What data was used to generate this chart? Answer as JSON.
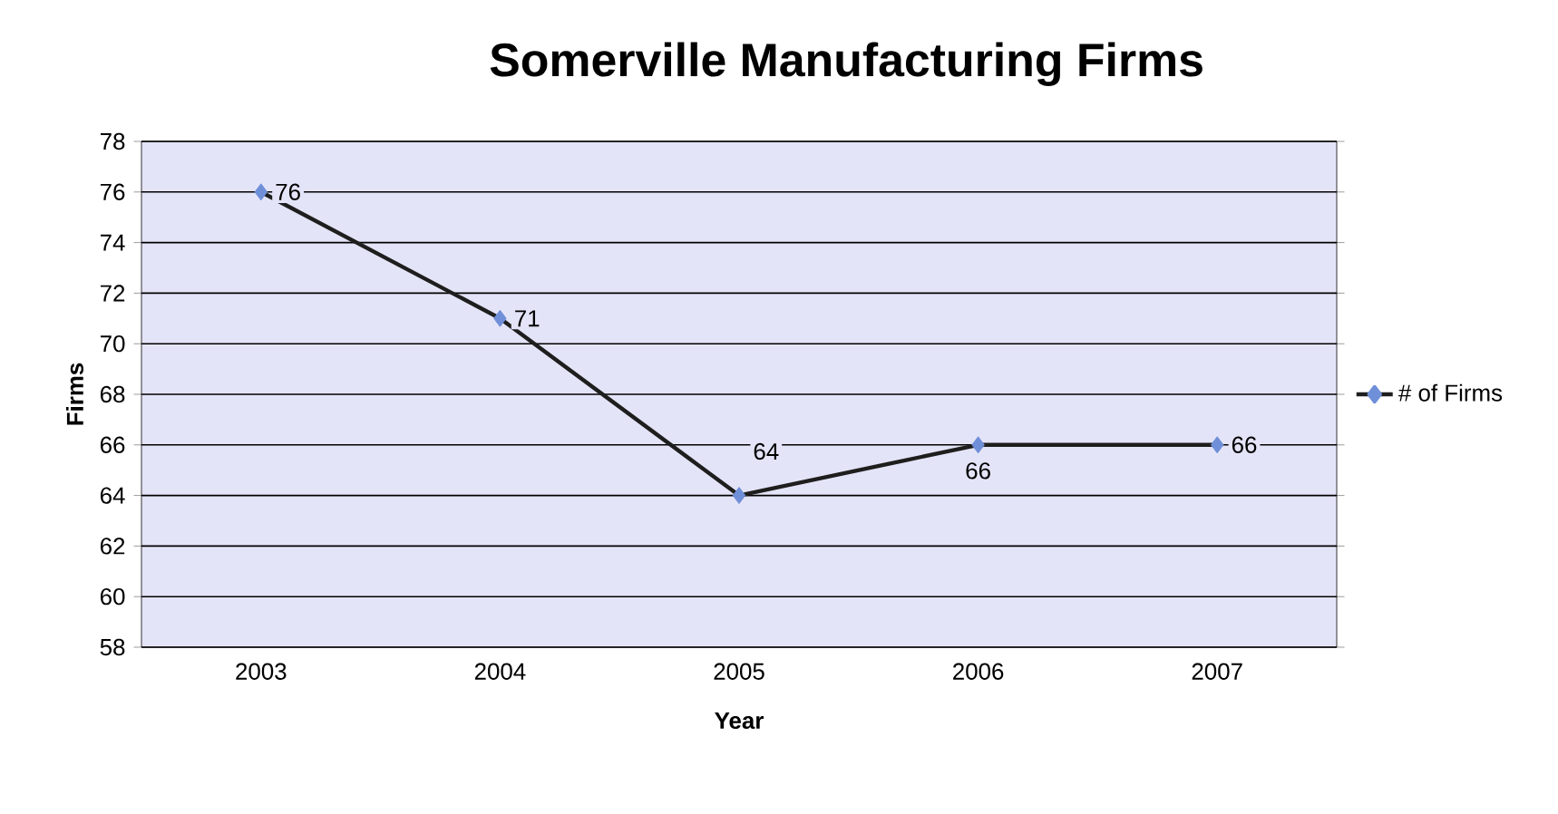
{
  "chart_data": {
    "type": "line",
    "title": "Somerville Manufacturing Firms",
    "xlabel": "Year",
    "ylabel": "Firms",
    "categories": [
      "2003",
      "2004",
      "2005",
      "2006",
      "2007"
    ],
    "series": [
      {
        "name": "# of Firms",
        "color": "#1e1e1e",
        "colors": [
          "#6f8fd8",
          "#6f8fd8",
          "#6f8fd8",
          "#6f8fd8",
          "#6f8fd8"
        ],
        "values": [
          76,
          71,
          64,
          66,
          66
        ]
      }
    ],
    "ylim": [
      58,
      78
    ],
    "yticks": [
      58,
      60,
      62,
      64,
      66,
      68,
      70,
      72,
      74,
      76,
      78
    ],
    "grid": "y",
    "legend": "right",
    "marker": "diamond",
    "line_style": "solid",
    "data_labels": true
  }
}
